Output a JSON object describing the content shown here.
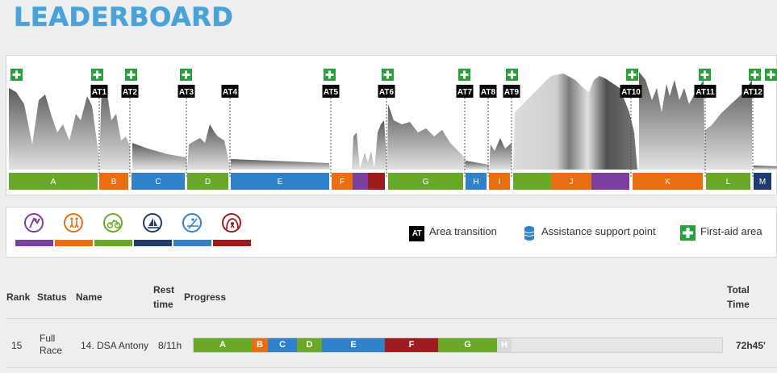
{
  "header": {
    "title": "LEADERBOARD"
  },
  "colors": {
    "green": "#6aa82a",
    "orange": "#ea6d10",
    "blue": "#2f82c9",
    "purple": "#7b3fa0",
    "red": "#9f1c1e",
    "navy": "#1f3b6f",
    "light": "#d9d9d9"
  },
  "profile": {
    "transitions": [
      "AT1",
      "AT2",
      "AT3",
      "AT4",
      "AT5",
      "AT6",
      "AT7",
      "AT8",
      "AT9",
      "AT10",
      "AT11",
      "AT12"
    ],
    "segments": [
      {
        "label": "A",
        "color": "green"
      },
      {
        "label": "B",
        "color": "orange"
      },
      {
        "label": "C",
        "color": "blue"
      },
      {
        "label": "D",
        "color": "green"
      },
      {
        "label": "E",
        "color": "blue"
      },
      {
        "label": "F",
        "color": "orange"
      },
      {
        "label": "",
        "color": "purple"
      },
      {
        "label": "",
        "color": "red"
      },
      {
        "label": "G",
        "color": "green"
      },
      {
        "label": "H",
        "color": "blue"
      },
      {
        "label": "I",
        "color": "orange"
      },
      {
        "label": "",
        "color": "green"
      },
      {
        "label": "J",
        "color": "orange"
      },
      {
        "label": "",
        "color": "purple"
      },
      {
        "label": "K",
        "color": "orange"
      },
      {
        "label": "L",
        "color": "green"
      },
      {
        "label": "M",
        "color": "navy"
      }
    ]
  },
  "legend": {
    "activities": [
      {
        "icon": "climbing-icon",
        "color": "purple"
      },
      {
        "icon": "trekking-icon",
        "color": "orange"
      },
      {
        "icon": "mountain-bike-icon",
        "color": "green"
      },
      {
        "icon": "sailing-icon",
        "color": "navy"
      },
      {
        "icon": "kayak-icon",
        "color": "blue"
      },
      {
        "icon": "caving-icon",
        "color": "red"
      }
    ],
    "at_badge": "AT",
    "area_transition": "Area transition",
    "assistance_point": "Assistance support point",
    "first_aid": "First-aid area"
  },
  "table": {
    "headers": {
      "rank": "Rank",
      "status": "Status",
      "name": "Name",
      "rest_line1": "Rest",
      "rest_line2": "time",
      "progress": "Progress",
      "total_line1": "Total",
      "total_line2": "Time"
    },
    "rows": [
      {
        "rank": "15",
        "status_line1": "Full",
        "status_line2": "Race",
        "name": "14. DSA Antony",
        "rest": "8/11h",
        "total": "72h45'",
        "progress": [
          {
            "label": "A",
            "color": "green"
          },
          {
            "label": "B",
            "color": "orange"
          },
          {
            "label": "C",
            "color": "blue"
          },
          {
            "label": "D",
            "color": "green"
          },
          {
            "label": "E",
            "color": "blue"
          },
          {
            "label": "F",
            "color": "red"
          },
          {
            "label": "G",
            "color": "green"
          },
          {
            "label": "H",
            "color": "light"
          }
        ]
      }
    ]
  }
}
